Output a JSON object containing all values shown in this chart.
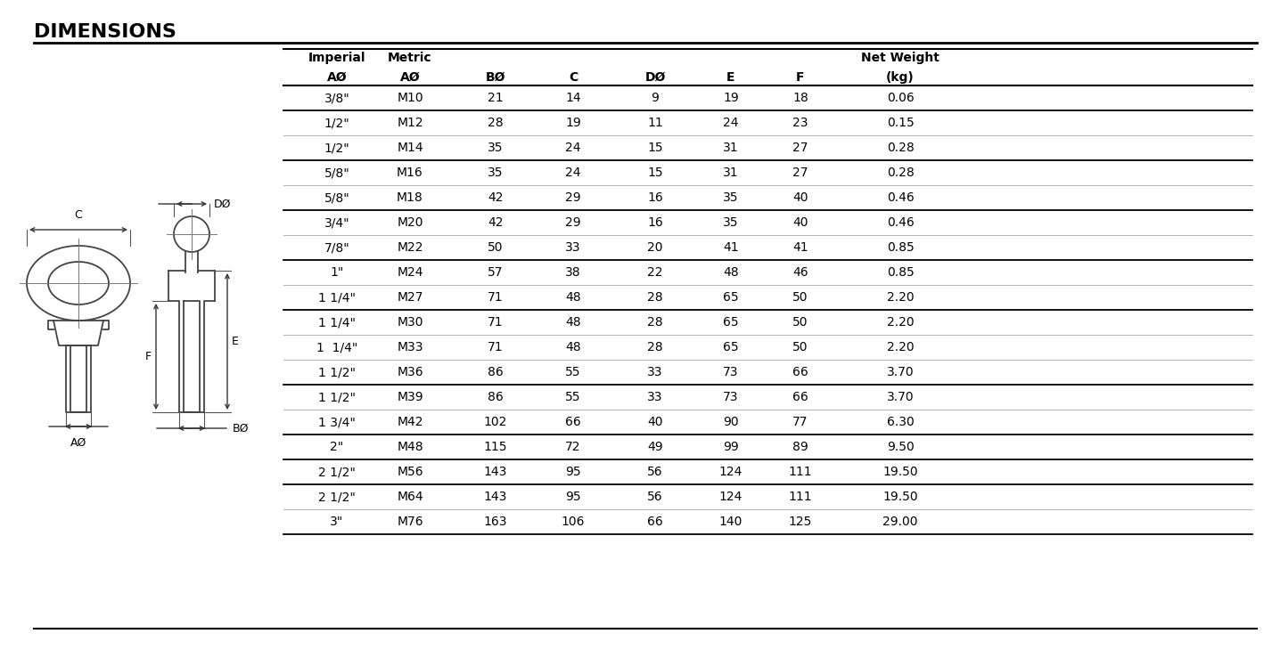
{
  "title": "DIMENSIONS",
  "col_headers_line1": [
    "Imperial",
    "Metric",
    "",
    "",
    "",
    "",
    "",
    "Net Weight"
  ],
  "col_headers_line2": [
    "AØ",
    "AØ",
    "BØ",
    "C",
    "DØ",
    "E",
    "F",
    "(kg)"
  ],
  "rows": [
    [
      "3/8\"",
      "M10",
      "21",
      "14",
      "9",
      "19",
      "18",
      "0.06"
    ],
    [
      "1/2\"",
      "M12",
      "28",
      "19",
      "11",
      "24",
      "23",
      "0.15"
    ],
    [
      "1/2\"",
      "M14",
      "35",
      "24",
      "15",
      "31",
      "27",
      "0.28"
    ],
    [
      "5/8\"",
      "M16",
      "35",
      "24",
      "15",
      "31",
      "27",
      "0.28"
    ],
    [
      "5/8\"",
      "M18",
      "42",
      "29",
      "16",
      "35",
      "40",
      "0.46"
    ],
    [
      "3/4\"",
      "M20",
      "42",
      "29",
      "16",
      "35",
      "40",
      "0.46"
    ],
    [
      "7/8\"",
      "M22",
      "50",
      "33",
      "20",
      "41",
      "41",
      "0.85"
    ],
    [
      "1\"",
      "M24",
      "57",
      "38",
      "22",
      "48",
      "46",
      "0.85"
    ],
    [
      "1 1/4\"",
      "M27",
      "71",
      "48",
      "28",
      "65",
      "50",
      "2.20"
    ],
    [
      "1 1/4\"",
      "M30",
      "71",
      "48",
      "28",
      "65",
      "50",
      "2.20"
    ],
    [
      "1  1/4\"",
      "M33",
      "71",
      "48",
      "28",
      "65",
      "50",
      "2.20"
    ],
    [
      "1 1/2\"",
      "M36",
      "86",
      "55",
      "33",
      "73",
      "66",
      "3.70"
    ],
    [
      "1 1/2\"",
      "M39",
      "86",
      "55",
      "33",
      "73",
      "66",
      "3.70"
    ],
    [
      "1 3/4\"",
      "M42",
      "102",
      "66",
      "40",
      "90",
      "77",
      "6.30"
    ],
    [
      "2\"",
      "M48",
      "115",
      "72",
      "49",
      "99",
      "89",
      "9.50"
    ],
    [
      "2 1/2\"",
      "M56",
      "143",
      "95",
      "56",
      "124",
      "111",
      "19.50"
    ],
    [
      "2 1/2\"",
      "M64",
      "143",
      "95",
      "56",
      "124",
      "111",
      "19.50"
    ],
    [
      "3\"",
      "M76",
      "163",
      "106",
      "66",
      "140",
      "125",
      "29.00"
    ]
  ],
  "thick_line_after": [
    0,
    1,
    2,
    3,
    4,
    5,
    6,
    7,
    8,
    9,
    10,
    11,
    12,
    13,
    14,
    15,
    16,
    17
  ],
  "thicker_line_after": [
    0,
    2,
    4,
    6,
    8,
    11,
    13,
    14,
    15,
    17
  ],
  "background_color": "#ffffff",
  "text_color": "#000000",
  "line_color_thick": "#000000",
  "line_color_thin": "#999999"
}
